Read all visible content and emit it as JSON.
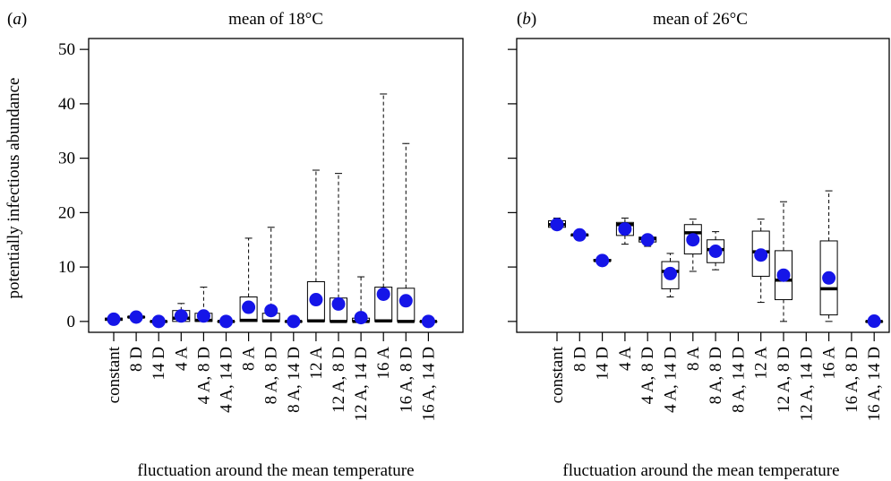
{
  "chart_data": [
    {
      "type": "box",
      "panel_label": "a",
      "title": "mean of 18°C",
      "xlabel": "fluctuation around the mean temperature",
      "ylabel": "potentially infectious abundance",
      "ylim": [
        -2,
        52
      ],
      "yticks": [
        0,
        10,
        20,
        30,
        40,
        50
      ],
      "categories": [
        "constant",
        "8 D",
        "14 D",
        "4 A",
        "4 A, 8 D",
        "4 A, 14 D",
        "8 A",
        "8 A, 8 D",
        "8 A, 14 D",
        "12 A",
        "12 A, 8 D",
        "12 A, 14 D",
        "16 A",
        "16 A, 8 D",
        "16 A, 14 D"
      ],
      "boxes": [
        {
          "min": 0.2,
          "q1": 0.2,
          "median": 0.4,
          "q3": 0.6,
          "max": 0.6
        },
        {
          "min": 0.7,
          "q1": 0.7,
          "median": 0.8,
          "q3": 0.9,
          "max": 0.9
        },
        {
          "min": 0,
          "q1": 0,
          "median": 0,
          "q3": 0,
          "max": 0
        },
        {
          "min": 0,
          "q1": 0,
          "median": 0.6,
          "q3": 2,
          "max": 3.3
        },
        {
          "min": 0,
          "q1": 0,
          "median": 0.2,
          "q3": 1.5,
          "max": 6.3
        },
        {
          "min": 0,
          "q1": 0,
          "median": 0,
          "q3": 0,
          "max": 0
        },
        {
          "min": 0,
          "q1": 0,
          "median": 0.2,
          "q3": 4.5,
          "max": 15.3
        },
        {
          "min": 0,
          "q1": 0,
          "median": 0.1,
          "q3": 1.5,
          "max": 17.3
        },
        {
          "min": 0,
          "q1": 0,
          "median": 0,
          "q3": 0,
          "max": 0
        },
        {
          "min": 0,
          "q1": 0,
          "median": 0.1,
          "q3": 7.3,
          "max": 27.8
        },
        {
          "min": 0,
          "q1": 0,
          "median": 0,
          "q3": 4.3,
          "max": 27.2
        },
        {
          "min": 0,
          "q1": 0,
          "median": 0,
          "q3": 0.6,
          "max": 8.2
        },
        {
          "min": 0,
          "q1": 0,
          "median": 0.1,
          "q3": 6.3,
          "max": 41.8
        },
        {
          "min": 0,
          "q1": 0,
          "median": 0,
          "q3": 6.1,
          "max": 32.7
        },
        {
          "min": 0,
          "q1": 0,
          "median": 0,
          "q3": 0,
          "max": 0
        }
      ],
      "means": [
        0.4,
        0.8,
        0,
        1.0,
        1.0,
        0,
        2.6,
        2.0,
        0,
        4.0,
        3.2,
        0.7,
        5.0,
        3.8,
        0
      ],
      "grid": false,
      "show_y_labels": true
    },
    {
      "type": "box",
      "panel_label": "b",
      "title": "mean of 26°C",
      "xlabel": "fluctuation around the mean temperature",
      "ylabel": "",
      "ylim": [
        -2,
        52
      ],
      "yticks": [
        0,
        10,
        20,
        30,
        40,
        50
      ],
      "categories": [
        "constant",
        "8 D",
        "14 D",
        "4 A",
        "4 A, 8 D",
        "4 A, 14 D",
        "8 A",
        "8 A, 8 D",
        "8 A, 14 D",
        "12 A",
        "12 A, 8 D",
        "12 A, 14 D",
        "16 A",
        "16 A, 8 D",
        "16 A, 14 D"
      ],
      "boxes": [
        {
          "min": 17,
          "q1": 17.3,
          "median": 17.8,
          "q3": 18.5,
          "max": 19
        },
        {
          "min": 15.6,
          "q1": 15.7,
          "median": 15.9,
          "q3": 16.0,
          "max": 16.1
        },
        {
          "min": 11,
          "q1": 11.1,
          "median": 11.2,
          "q3": 11.4,
          "max": 11.5
        },
        {
          "min": 14.2,
          "q1": 15.8,
          "median": 17.8,
          "q3": 18.2,
          "max": 19
        },
        {
          "min": 13.8,
          "q1": 14.6,
          "median": 15.2,
          "q3": 15.5,
          "max": 15.8
        },
        {
          "min": 4.5,
          "q1": 6,
          "median": 9.2,
          "q3": 11,
          "max": 12.5
        },
        {
          "min": 9.2,
          "q1": 12.4,
          "median": 16.3,
          "q3": 17.8,
          "max": 18.8
        },
        {
          "min": 9.5,
          "q1": 10.8,
          "median": 13.2,
          "q3": 15,
          "max": 16.5
        },
        null,
        {
          "min": 3.5,
          "q1": 8.3,
          "median": 12.8,
          "q3": 16.6,
          "max": 18.8
        },
        {
          "min": 0,
          "q1": 4,
          "median": 7.6,
          "q3": 13,
          "max": 22
        },
        null,
        {
          "min": 0,
          "q1": 1.2,
          "median": 6,
          "q3": 14.8,
          "max": 24
        },
        null,
        {
          "min": 0,
          "q1": 0,
          "median": 0,
          "q3": 0,
          "max": 0
        }
      ],
      "means": [
        17.8,
        15.9,
        11.2,
        17.0,
        15.0,
        8.8,
        15.0,
        12.9,
        null,
        12.2,
        8.5,
        null,
        8.0,
        null,
        0.05
      ],
      "grid": false,
      "show_y_labels": false
    }
  ],
  "colors": {
    "mean_marker": "#1515e8",
    "box_stroke": "#000000",
    "background": "#ffffff"
  }
}
